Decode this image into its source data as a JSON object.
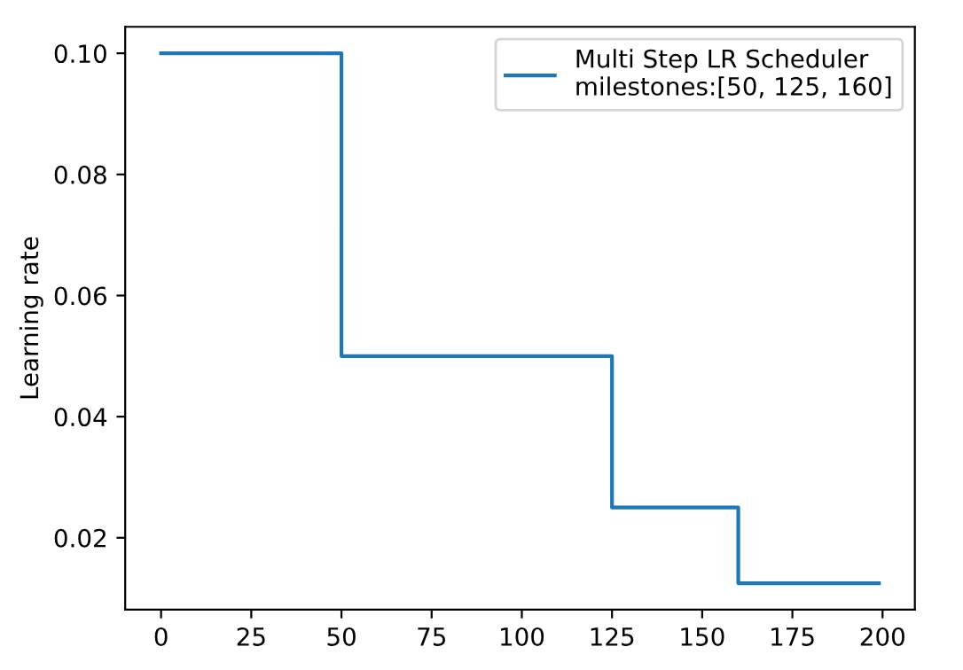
{
  "chart_data": {
    "type": "step",
    "ylabel": "Learning rate",
    "series": [
      {
        "name": "Multi Step LR Scheduler\nmilestones:[50, 125, 160]",
        "color": "#1f77b4",
        "x": [
          0,
          50,
          125,
          160,
          199
        ],
        "values": [
          0.1,
          0.05,
          0.025,
          0.0125,
          0.0125
        ]
      }
    ],
    "xlim": [
      -9.95,
      208.95
    ],
    "ylim": [
      0.008125,
      0.104375
    ],
    "xticks": [
      0,
      25,
      50,
      75,
      100,
      125,
      150,
      175,
      200
    ],
    "yticks": [
      {
        "value": 0.02,
        "label": "0.02"
      },
      {
        "value": 0.04,
        "label": "0.04"
      },
      {
        "value": 0.06,
        "label": "0.06"
      },
      {
        "value": 0.08,
        "label": "0.08"
      },
      {
        "value": 0.1,
        "label": "0.10"
      }
    ],
    "legend": "top right",
    "grid": false
  }
}
